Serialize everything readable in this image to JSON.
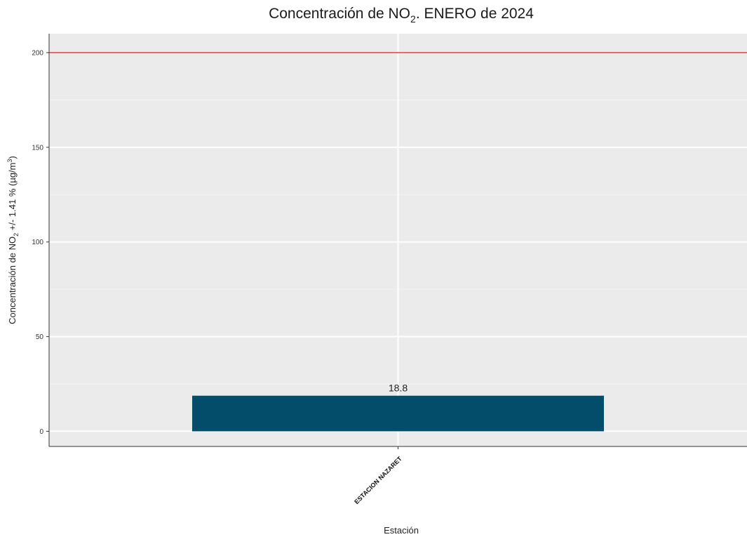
{
  "chart_data": {
    "type": "bar",
    "title": {
      "prefix": "Concentración de NO",
      "subscript": "2",
      "suffix": ". ENERO de 2024"
    },
    "ylabel": {
      "prefix": "Concentración de NO",
      "subscript": "2",
      "middle": " +/- 1.41 % (µg/m",
      "superscript": "3",
      "suffix": ")"
    },
    "xlabel": "Estación",
    "categories": [
      "ESTACION NAZARET"
    ],
    "values": [
      18.8
    ],
    "data_labels": [
      "18.8"
    ],
    "ylim": [
      -8,
      210
    ],
    "yticks": [
      0,
      50,
      100,
      150,
      200
    ],
    "ytick_labels": [
      "0",
      "50",
      "100",
      "150",
      "200"
    ],
    "reference_line": {
      "value": 200,
      "color": "#e8474a"
    },
    "bar_color": "#034d6b",
    "panel_background": "#ebebeb",
    "grid": true,
    "legend": "none"
  }
}
